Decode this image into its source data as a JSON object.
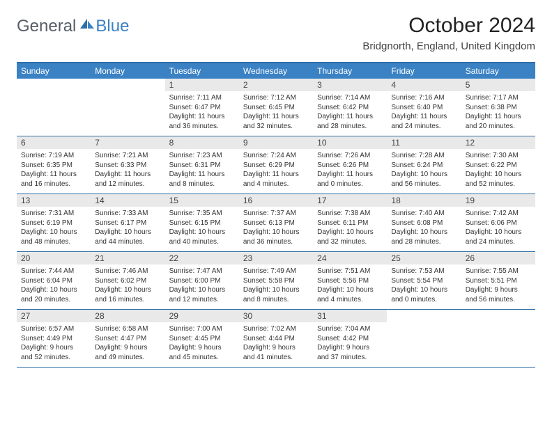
{
  "brand": {
    "part1": "General",
    "part2": "Blue"
  },
  "title": "October 2024",
  "location": "Bridgnorth, England, United Kingdom",
  "colors": {
    "header_bg": "#3b82c4",
    "rule": "#2f6fa8",
    "daynum_bg": "#e9e9e9",
    "text": "#333333",
    "page_bg": "#ffffff"
  },
  "weekdays": [
    "Sunday",
    "Monday",
    "Tuesday",
    "Wednesday",
    "Thursday",
    "Friday",
    "Saturday"
  ],
  "weeks": [
    [
      null,
      null,
      {
        "n": "1",
        "sr": "7:11 AM",
        "ss": "6:47 PM",
        "dl": "11 hours and 36 minutes."
      },
      {
        "n": "2",
        "sr": "7:12 AM",
        "ss": "6:45 PM",
        "dl": "11 hours and 32 minutes."
      },
      {
        "n": "3",
        "sr": "7:14 AM",
        "ss": "6:42 PM",
        "dl": "11 hours and 28 minutes."
      },
      {
        "n": "4",
        "sr": "7:16 AM",
        "ss": "6:40 PM",
        "dl": "11 hours and 24 minutes."
      },
      {
        "n": "5",
        "sr": "7:17 AM",
        "ss": "6:38 PM",
        "dl": "11 hours and 20 minutes."
      }
    ],
    [
      {
        "n": "6",
        "sr": "7:19 AM",
        "ss": "6:35 PM",
        "dl": "11 hours and 16 minutes."
      },
      {
        "n": "7",
        "sr": "7:21 AM",
        "ss": "6:33 PM",
        "dl": "11 hours and 12 minutes."
      },
      {
        "n": "8",
        "sr": "7:23 AM",
        "ss": "6:31 PM",
        "dl": "11 hours and 8 minutes."
      },
      {
        "n": "9",
        "sr": "7:24 AM",
        "ss": "6:29 PM",
        "dl": "11 hours and 4 minutes."
      },
      {
        "n": "10",
        "sr": "7:26 AM",
        "ss": "6:26 PM",
        "dl": "11 hours and 0 minutes."
      },
      {
        "n": "11",
        "sr": "7:28 AM",
        "ss": "6:24 PM",
        "dl": "10 hours and 56 minutes."
      },
      {
        "n": "12",
        "sr": "7:30 AM",
        "ss": "6:22 PM",
        "dl": "10 hours and 52 minutes."
      }
    ],
    [
      {
        "n": "13",
        "sr": "7:31 AM",
        "ss": "6:19 PM",
        "dl": "10 hours and 48 minutes."
      },
      {
        "n": "14",
        "sr": "7:33 AM",
        "ss": "6:17 PM",
        "dl": "10 hours and 44 minutes."
      },
      {
        "n": "15",
        "sr": "7:35 AM",
        "ss": "6:15 PM",
        "dl": "10 hours and 40 minutes."
      },
      {
        "n": "16",
        "sr": "7:37 AM",
        "ss": "6:13 PM",
        "dl": "10 hours and 36 minutes."
      },
      {
        "n": "17",
        "sr": "7:38 AM",
        "ss": "6:11 PM",
        "dl": "10 hours and 32 minutes."
      },
      {
        "n": "18",
        "sr": "7:40 AM",
        "ss": "6:08 PM",
        "dl": "10 hours and 28 minutes."
      },
      {
        "n": "19",
        "sr": "7:42 AM",
        "ss": "6:06 PM",
        "dl": "10 hours and 24 minutes."
      }
    ],
    [
      {
        "n": "20",
        "sr": "7:44 AM",
        "ss": "6:04 PM",
        "dl": "10 hours and 20 minutes."
      },
      {
        "n": "21",
        "sr": "7:46 AM",
        "ss": "6:02 PM",
        "dl": "10 hours and 16 minutes."
      },
      {
        "n": "22",
        "sr": "7:47 AM",
        "ss": "6:00 PM",
        "dl": "10 hours and 12 minutes."
      },
      {
        "n": "23",
        "sr": "7:49 AM",
        "ss": "5:58 PM",
        "dl": "10 hours and 8 minutes."
      },
      {
        "n": "24",
        "sr": "7:51 AM",
        "ss": "5:56 PM",
        "dl": "10 hours and 4 minutes."
      },
      {
        "n": "25",
        "sr": "7:53 AM",
        "ss": "5:54 PM",
        "dl": "10 hours and 0 minutes."
      },
      {
        "n": "26",
        "sr": "7:55 AM",
        "ss": "5:51 PM",
        "dl": "9 hours and 56 minutes."
      }
    ],
    [
      {
        "n": "27",
        "sr": "6:57 AM",
        "ss": "4:49 PM",
        "dl": "9 hours and 52 minutes."
      },
      {
        "n": "28",
        "sr": "6:58 AM",
        "ss": "4:47 PM",
        "dl": "9 hours and 49 minutes."
      },
      {
        "n": "29",
        "sr": "7:00 AM",
        "ss": "4:45 PM",
        "dl": "9 hours and 45 minutes."
      },
      {
        "n": "30",
        "sr": "7:02 AM",
        "ss": "4:44 PM",
        "dl": "9 hours and 41 minutes."
      },
      {
        "n": "31",
        "sr": "7:04 AM",
        "ss": "4:42 PM",
        "dl": "9 hours and 37 minutes."
      },
      null,
      null
    ]
  ],
  "labels": {
    "sunrise": "Sunrise:",
    "sunset": "Sunset:",
    "daylight": "Daylight:"
  }
}
